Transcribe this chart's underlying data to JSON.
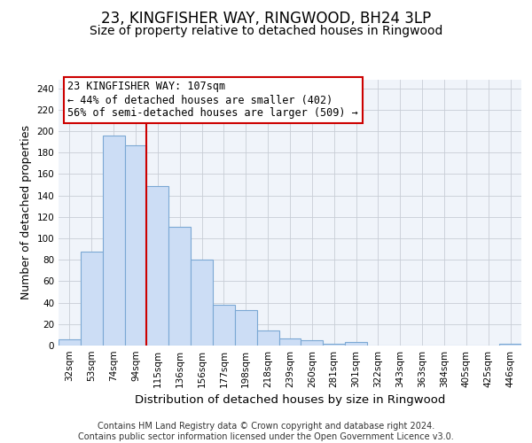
{
  "title": "23, KINGFISHER WAY, RINGWOOD, BH24 3LP",
  "subtitle": "Size of property relative to detached houses in Ringwood",
  "xlabel": "Distribution of detached houses by size in Ringwood",
  "ylabel": "Number of detached properties",
  "bar_labels": [
    "32sqm",
    "53sqm",
    "74sqm",
    "94sqm",
    "115sqm",
    "136sqm",
    "156sqm",
    "177sqm",
    "198sqm",
    "218sqm",
    "239sqm",
    "260sqm",
    "281sqm",
    "301sqm",
    "322sqm",
    "343sqm",
    "363sqm",
    "384sqm",
    "405sqm",
    "425sqm",
    "446sqm"
  ],
  "bar_values": [
    6,
    88,
    196,
    187,
    149,
    111,
    80,
    38,
    33,
    14,
    7,
    5,
    2,
    3,
    0,
    0,
    0,
    0,
    0,
    0,
    2
  ],
  "bar_color": "#ccddf5",
  "bar_edge_color": "#7ba8d4",
  "vline_x": 4.0,
  "vline_color": "#cc0000",
  "ylim": [
    0,
    248
  ],
  "yticks": [
    0,
    20,
    40,
    60,
    80,
    100,
    120,
    140,
    160,
    180,
    200,
    220,
    240
  ],
  "annotation_text": "23 KINGFISHER WAY: 107sqm\n← 44% of detached houses are smaller (402)\n56% of semi-detached houses are larger (509) →",
  "annotation_box_color": "#ffffff",
  "annotation_box_edge": "#cc0000",
  "footer_text": "Contains HM Land Registry data © Crown copyright and database right 2024.\nContains public sector information licensed under the Open Government Licence v3.0.",
  "title_fontsize": 12,
  "subtitle_fontsize": 10,
  "xlabel_fontsize": 9.5,
  "ylabel_fontsize": 9,
  "tick_fontsize": 7.5,
  "annotation_fontsize": 8.5,
  "footer_fontsize": 7
}
